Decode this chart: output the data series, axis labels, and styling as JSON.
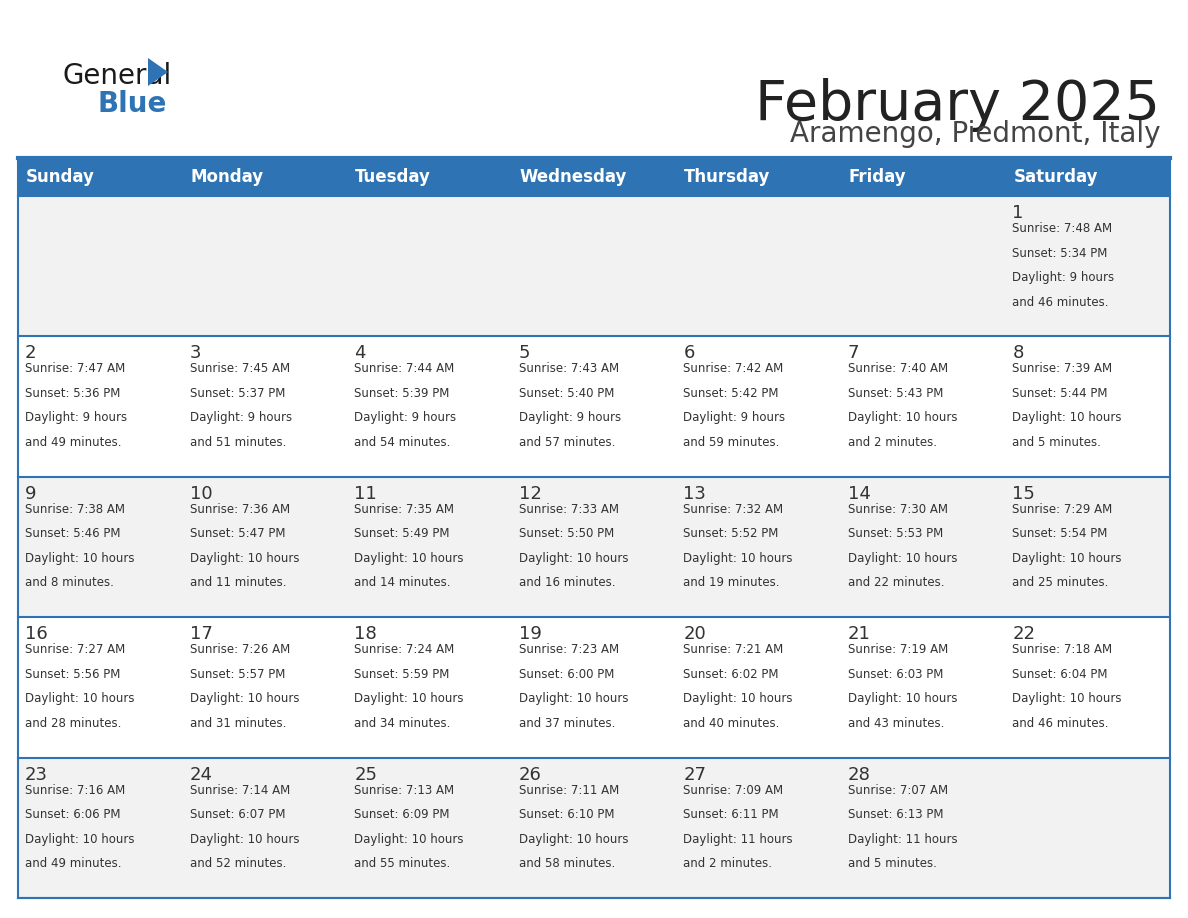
{
  "title": "February 2025",
  "subtitle": "Aramengo, Piedmont, Italy",
  "days_of_week": [
    "Sunday",
    "Monday",
    "Tuesday",
    "Wednesday",
    "Thursday",
    "Friday",
    "Saturday"
  ],
  "header_bg": "#2E74B5",
  "header_text": "#FFFFFF",
  "cell_bg_odd": "#F2F2F2",
  "cell_bg_even": "#FFFFFF",
  "border_color": "#2E74B5",
  "day_num_color": "#333333",
  "info_color": "#333333",
  "title_color": "#222222",
  "subtitle_color": "#444444",
  "weeks": [
    [
      null,
      null,
      null,
      null,
      null,
      null,
      1
    ],
    [
      2,
      3,
      4,
      5,
      6,
      7,
      8
    ],
    [
      9,
      10,
      11,
      12,
      13,
      14,
      15
    ],
    [
      16,
      17,
      18,
      19,
      20,
      21,
      22
    ],
    [
      23,
      24,
      25,
      26,
      27,
      28,
      null
    ]
  ],
  "day_data": {
    "1": {
      "sunrise": "7:48 AM",
      "sunset": "5:34 PM",
      "daylight": "9 hours and 46 minutes."
    },
    "2": {
      "sunrise": "7:47 AM",
      "sunset": "5:36 PM",
      "daylight": "9 hours and 49 minutes."
    },
    "3": {
      "sunrise": "7:45 AM",
      "sunset": "5:37 PM",
      "daylight": "9 hours and 51 minutes."
    },
    "4": {
      "sunrise": "7:44 AM",
      "sunset": "5:39 PM",
      "daylight": "9 hours and 54 minutes."
    },
    "5": {
      "sunrise": "7:43 AM",
      "sunset": "5:40 PM",
      "daylight": "9 hours and 57 minutes."
    },
    "6": {
      "sunrise": "7:42 AM",
      "sunset": "5:42 PM",
      "daylight": "9 hours and 59 minutes."
    },
    "7": {
      "sunrise": "7:40 AM",
      "sunset": "5:43 PM",
      "daylight": "10 hours and 2 minutes."
    },
    "8": {
      "sunrise": "7:39 AM",
      "sunset": "5:44 PM",
      "daylight": "10 hours and 5 minutes."
    },
    "9": {
      "sunrise": "7:38 AM",
      "sunset": "5:46 PM",
      "daylight": "10 hours and 8 minutes."
    },
    "10": {
      "sunrise": "7:36 AM",
      "sunset": "5:47 PM",
      "daylight": "10 hours and 11 minutes."
    },
    "11": {
      "sunrise": "7:35 AM",
      "sunset": "5:49 PM",
      "daylight": "10 hours and 14 minutes."
    },
    "12": {
      "sunrise": "7:33 AM",
      "sunset": "5:50 PM",
      "daylight": "10 hours and 16 minutes."
    },
    "13": {
      "sunrise": "7:32 AM",
      "sunset": "5:52 PM",
      "daylight": "10 hours and 19 minutes."
    },
    "14": {
      "sunrise": "7:30 AM",
      "sunset": "5:53 PM",
      "daylight": "10 hours and 22 minutes."
    },
    "15": {
      "sunrise": "7:29 AM",
      "sunset": "5:54 PM",
      "daylight": "10 hours and 25 minutes."
    },
    "16": {
      "sunrise": "7:27 AM",
      "sunset": "5:56 PM",
      "daylight": "10 hours and 28 minutes."
    },
    "17": {
      "sunrise": "7:26 AM",
      "sunset": "5:57 PM",
      "daylight": "10 hours and 31 minutes."
    },
    "18": {
      "sunrise": "7:24 AM",
      "sunset": "5:59 PM",
      "daylight": "10 hours and 34 minutes."
    },
    "19": {
      "sunrise": "7:23 AM",
      "sunset": "6:00 PM",
      "daylight": "10 hours and 37 minutes."
    },
    "20": {
      "sunrise": "7:21 AM",
      "sunset": "6:02 PM",
      "daylight": "10 hours and 40 minutes."
    },
    "21": {
      "sunrise": "7:19 AM",
      "sunset": "6:03 PM",
      "daylight": "10 hours and 43 minutes."
    },
    "22": {
      "sunrise": "7:18 AM",
      "sunset": "6:04 PM",
      "daylight": "10 hours and 46 minutes."
    },
    "23": {
      "sunrise": "7:16 AM",
      "sunset": "6:06 PM",
      "daylight": "10 hours and 49 minutes."
    },
    "24": {
      "sunrise": "7:14 AM",
      "sunset": "6:07 PM",
      "daylight": "10 hours and 52 minutes."
    },
    "25": {
      "sunrise": "7:13 AM",
      "sunset": "6:09 PM",
      "daylight": "10 hours and 55 minutes."
    },
    "26": {
      "sunrise": "7:11 AM",
      "sunset": "6:10 PM",
      "daylight": "10 hours and 58 minutes."
    },
    "27": {
      "sunrise": "7:09 AM",
      "sunset": "6:11 PM",
      "daylight": "11 hours and 2 minutes."
    },
    "28": {
      "sunrise": "7:07 AM",
      "sunset": "6:13 PM",
      "daylight": "11 hours and 5 minutes."
    }
  }
}
